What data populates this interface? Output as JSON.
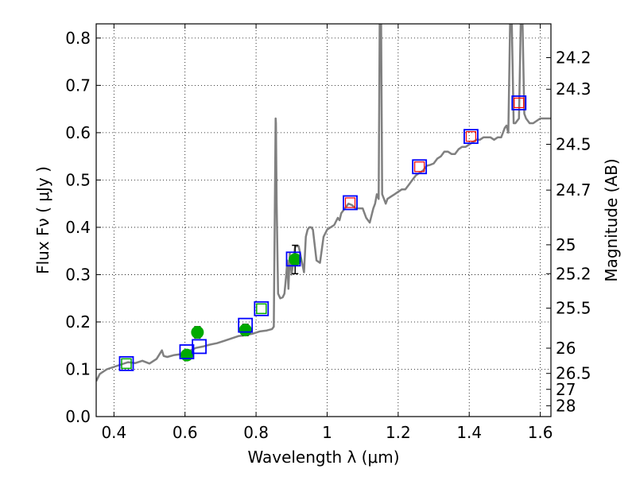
{
  "chart_data": {
    "type": "scatter",
    "title": "",
    "xlabel": "Wavelength  λ (μm)",
    "ylabel": "Flux  Fν  ( μJy )",
    "ylabel_right": "Magnitude (AB)",
    "xlim": [
      0.35,
      1.63
    ],
    "ylim": [
      0.0,
      0.83
    ],
    "x_ticks": [
      0.4,
      0.6,
      0.8,
      1.0,
      1.2,
      1.4,
      1.6
    ],
    "x_tick_labels": [
      "0.4",
      "0.6",
      "0.8",
      "1",
      "1.2",
      "1.4",
      "1.6"
    ],
    "y_ticks": [
      0.0,
      0.1,
      0.2,
      0.3,
      0.4,
      0.5,
      0.6,
      0.7,
      0.8
    ],
    "y_tick_labels": [
      "0.0",
      "0.1",
      "0.2",
      "0.3",
      "0.4",
      "0.5",
      "0.6",
      "0.7",
      "0.8"
    ],
    "mag_ticks": [
      24.2,
      24.3,
      24.5,
      24.7,
      25,
      25.2,
      25.5,
      26,
      26.5,
      27,
      28
    ],
    "mag_tick_labels": [
      "24.2",
      "24.3",
      "24.5",
      "24.7",
      "25",
      "25.2",
      "25.5",
      "26",
      "26.5",
      "27",
      "28"
    ],
    "grid": true,
    "colors": {
      "sed": "#808080",
      "observed": "#00aa00",
      "model": "#0000ff",
      "nir": "#ff0000"
    },
    "sed_template": {
      "name": "",
      "x": [
        0.35,
        0.36,
        0.38,
        0.4,
        0.42,
        0.44,
        0.46,
        0.48,
        0.5,
        0.52,
        0.535,
        0.54,
        0.55,
        0.57,
        0.59,
        0.61,
        0.63,
        0.65,
        0.67,
        0.69,
        0.71,
        0.73,
        0.75,
        0.77,
        0.79,
        0.81,
        0.83,
        0.845,
        0.85,
        0.855,
        0.856,
        0.858,
        0.862,
        0.868,
        0.875,
        0.88,
        0.885,
        0.888,
        0.891,
        0.893,
        0.895,
        0.9,
        0.91,
        0.92,
        0.935,
        0.94,
        0.945,
        0.95,
        0.955,
        0.96,
        0.97,
        0.98,
        0.99,
        1.0,
        1.01,
        1.02,
        1.03,
        1.035,
        1.04,
        1.05,
        1.06,
        1.07,
        1.08,
        1.09,
        1.1,
        1.11,
        1.12,
        1.13,
        1.135,
        1.14,
        1.145,
        1.148,
        1.15,
        1.152,
        1.155,
        1.16,
        1.165,
        1.17,
        1.18,
        1.19,
        1.2,
        1.21,
        1.22,
        1.23,
        1.24,
        1.25,
        1.26,
        1.27,
        1.28,
        1.29,
        1.3,
        1.31,
        1.32,
        1.33,
        1.34,
        1.35,
        1.36,
        1.37,
        1.38,
        1.39,
        1.4,
        1.41,
        1.42,
        1.43,
        1.44,
        1.45,
        1.46,
        1.47,
        1.48,
        1.49,
        1.5,
        1.505,
        1.51,
        1.515,
        1.52,
        1.525,
        1.53,
        1.535,
        1.54,
        1.545,
        1.55,
        1.555,
        1.56,
        1.57,
        1.58,
        1.59,
        1.6,
        1.61,
        1.62,
        1.63
      ],
      "y": [
        0.075,
        0.09,
        0.1,
        0.105,
        0.11,
        0.115,
        0.113,
        0.118,
        0.112,
        0.122,
        0.14,
        0.128,
        0.126,
        0.13,
        0.132,
        0.138,
        0.145,
        0.148,
        0.152,
        0.155,
        0.16,
        0.165,
        0.17,
        0.172,
        0.175,
        0.18,
        0.182,
        0.185,
        0.19,
        0.63,
        0.62,
        0.45,
        0.26,
        0.25,
        0.252,
        0.26,
        0.3,
        0.33,
        0.27,
        0.31,
        0.345,
        0.3,
        0.36,
        0.36,
        0.305,
        0.38,
        0.395,
        0.4,
        0.4,
        0.395,
        0.33,
        0.325,
        0.38,
        0.395,
        0.4,
        0.405,
        0.42,
        0.415,
        0.43,
        0.44,
        0.45,
        0.447,
        0.44,
        0.44,
        0.44,
        0.42,
        0.41,
        0.44,
        0.45,
        0.47,
        0.46,
        0.83,
        0.83,
        0.83,
        0.47,
        0.46,
        0.45,
        0.46,
        0.465,
        0.47,
        0.475,
        0.48,
        0.48,
        0.49,
        0.5,
        0.51,
        0.515,
        0.52,
        0.53,
        0.532,
        0.535,
        0.545,
        0.55,
        0.56,
        0.56,
        0.555,
        0.555,
        0.565,
        0.57,
        0.57,
        0.575,
        0.58,
        0.585,
        0.585,
        0.59,
        0.59,
        0.59,
        0.585,
        0.59,
        0.59,
        0.61,
        0.615,
        0.6,
        0.83,
        0.83,
        0.62,
        0.62,
        0.625,
        0.63,
        0.83,
        0.83,
        0.64,
        0.63,
        0.62,
        0.62,
        0.625,
        0.63,
        0.63,
        0.63,
        0.63
      ]
    },
    "series": [
      {
        "x": [
          0.605,
          0.635,
          0.77,
          0.91
        ],
        "values": [
          0.13,
          0.178,
          0.183,
          0.332
        ],
        "errors": [
          0.01,
          0.012,
          0.012,
          0.03
        ]
      },
      {
        "x": [
          0.435,
          0.605,
          0.64,
          0.77,
          0.815,
          0.905,
          1.065,
          1.26,
          1.405,
          1.54
        ],
        "values": [
          0.112,
          0.137,
          0.148,
          0.193,
          0.228,
          0.333,
          0.452,
          0.528,
          0.592,
          0.663
        ]
      },
      {
        "x": [
          0.435,
          0.815
        ],
        "values": [
          0.112,
          0.228
        ]
      },
      {
        "x": [
          1.065,
          1.26,
          1.405,
          1.54
        ],
        "values": [
          0.452,
          0.528,
          0.592,
          0.663
        ]
      }
    ]
  }
}
